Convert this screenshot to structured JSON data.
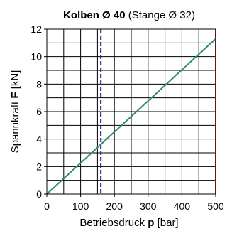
{
  "chart_data": {
    "type": "line",
    "title": {
      "bold": "Kolben Ø 40",
      "normal": " (Stange Ø 32)"
    },
    "xlabel": {
      "prefix": "Betriebsdruck ",
      "bold": "p",
      "suffix": " [bar]"
    },
    "ylabel": {
      "prefix": "Spannkraft ",
      "bold": "F",
      "suffix": " [kN]"
    },
    "xlim": [
      0,
      500
    ],
    "ylim": [
      0,
      12
    ],
    "x_ticks": [
      0,
      100,
      200,
      300,
      400,
      500
    ],
    "y_ticks": [
      0,
      2,
      4,
      6,
      8,
      10,
      12
    ],
    "x_grid": [
      0,
      50,
      100,
      150,
      200,
      250,
      300,
      350,
      400,
      450,
      500
    ],
    "y_grid": [
      0,
      1,
      2,
      3,
      4,
      5,
      6,
      7,
      8,
      9,
      10,
      11,
      12
    ],
    "grid": true,
    "series": [
      {
        "x": [
          0,
          500
        ],
        "y": [
          0,
          11.3
        ],
        "color": "#2e8b6f"
      }
    ],
    "reference_lines": [
      {
        "x": 160,
        "style": "dashed",
        "color": "#1a237e"
      },
      {
        "x": 500,
        "style": "solid",
        "color": "#e02020"
      }
    ]
  }
}
